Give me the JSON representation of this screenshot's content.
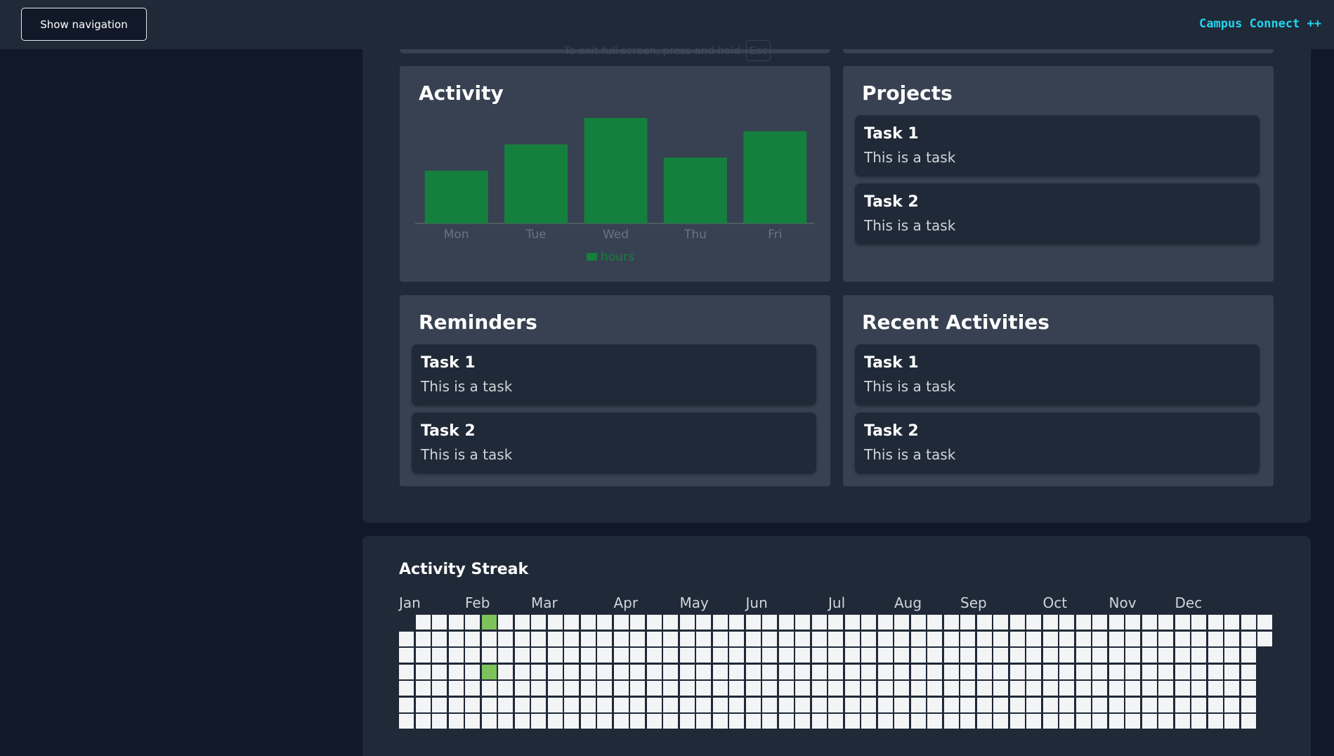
{
  "topbar": {
    "nav_button_label": "Show navigation",
    "brand": "Campus Connect ++"
  },
  "fullscreen_hint": {
    "text": "To exit full screen, press and hold",
    "key": "Esc"
  },
  "activity": {
    "title": "Activity",
    "chart_data": {
      "type": "bar",
      "categories": [
        "Mon",
        "Tue",
        "Wed",
        "Thu",
        "Fri"
      ],
      "series": [
        {
          "name": "hours",
          "values": [
            4,
            6,
            8,
            5,
            7
          ]
        }
      ],
      "ylim": [
        0,
        8
      ],
      "legend": "bottom",
      "colors": [
        "#15803d"
      ]
    }
  },
  "projects": {
    "title": "Projects",
    "items": [
      {
        "title": "Task 1",
        "desc": "This is a task"
      },
      {
        "title": "Task 2",
        "desc": "This is a task"
      }
    ]
  },
  "reminders": {
    "title": "Reminders",
    "items": [
      {
        "title": "Task 1",
        "desc": "This is a task"
      },
      {
        "title": "Task 2",
        "desc": "This is a task"
      }
    ]
  },
  "recent": {
    "title": "Recent Activities",
    "items": [
      {
        "title": "Task 1",
        "desc": "This is a task"
      },
      {
        "title": "Task 2",
        "desc": "This is a task"
      }
    ]
  },
  "streak": {
    "title": "Activity Streak",
    "months": [
      "Jan",
      "Feb",
      "Mar",
      "Apr",
      "May",
      "Jun",
      "Jul",
      "Aug",
      "Sep",
      "Oct",
      "Nov",
      "Dec"
    ],
    "active_days": [
      34,
      37
    ],
    "colors": {
      "empty": "#f3f4f6",
      "active": "#7cc35a"
    }
  }
}
